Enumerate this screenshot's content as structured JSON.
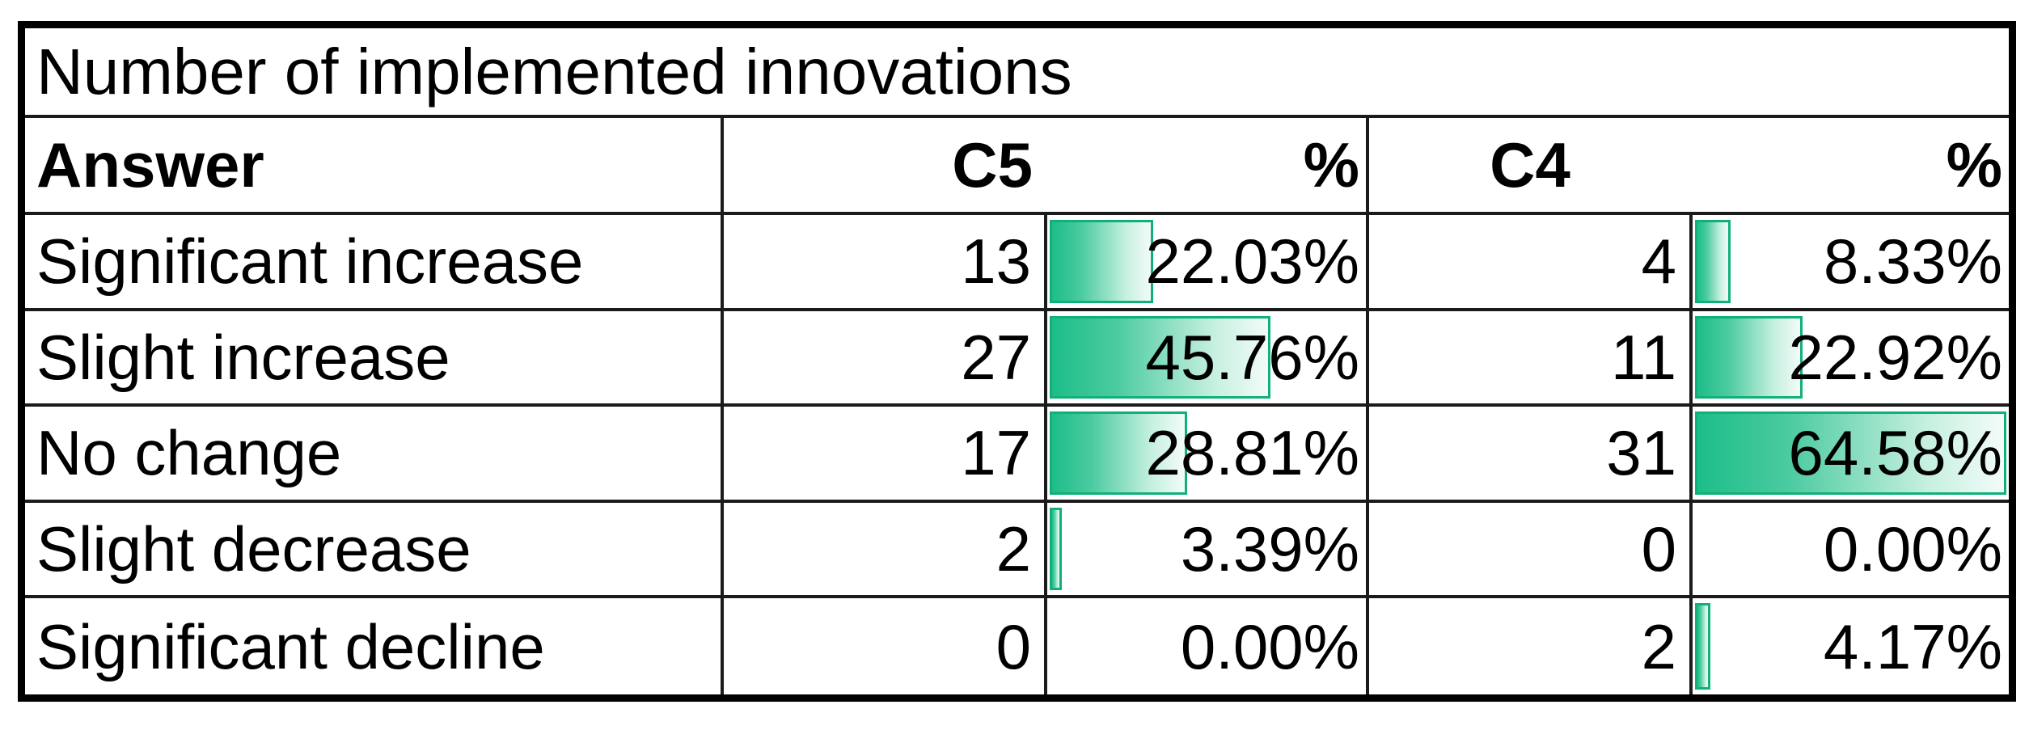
{
  "title": "Number of implemented innovations",
  "header": {
    "answer": "Answer",
    "c5": "C5",
    "c5_pct": "%",
    "c4": "C4",
    "c4_pct": "%"
  },
  "databar": {
    "fill_start_color": "#1dbd89",
    "fill_end_color": "#f3fbf8",
    "border_color": "#10b176"
  },
  "chart_data": {
    "type": "table",
    "title": "Number of implemented innovations",
    "columns": [
      "Answer",
      "C5",
      "%",
      "C4",
      "%"
    ],
    "rows": [
      {
        "answer": "Significant increase",
        "c5": 13,
        "c5_pct": "22.03%",
        "c4": 4,
        "c4_pct": "8.33%"
      },
      {
        "answer": "Slight increase",
        "c5": 27,
        "c5_pct": "45.76%",
        "c4": 11,
        "c4_pct": "22.92%"
      },
      {
        "answer": "No change",
        "c5": 17,
        "c5_pct": "28.81%",
        "c4": 31,
        "c4_pct": "64.58%"
      },
      {
        "answer": "Slight decrease",
        "c5": 2,
        "c5_pct": "3.39%",
        "c4": 0,
        "c4_pct": "0.00%"
      },
      {
        "answer": "Significant decline",
        "c5": 0,
        "c5_pct": "0.00%",
        "c4": 2,
        "c4_pct": "4.17%"
      }
    ],
    "databar_scale": {
      "min": 0,
      "max": 64.58
    },
    "layout_hints": "green gradient data bars in % columns, scaled so 64.58% = full cell width"
  }
}
